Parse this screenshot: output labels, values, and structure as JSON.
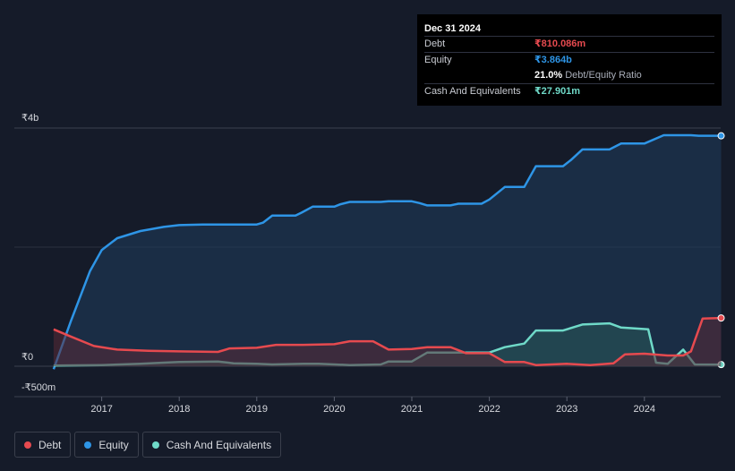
{
  "tooltip": {
    "date": "Dec 31 2024",
    "rows": [
      {
        "label": "Debt",
        "value": "₹810.086m",
        "color": "#e64a4f"
      },
      {
        "label": "Equity",
        "value": "₹3.864b",
        "color": "#2e95e6"
      },
      {
        "label": "",
        "value": "21.0%",
        "sub": "Debt/Equity Ratio",
        "color": "#ffffff"
      },
      {
        "label": "Cash And Equivalents",
        "value": "₹27.901m",
        "color": "#6fd9c8"
      }
    ]
  },
  "legend": [
    {
      "label": "Debt",
      "color": "#e64a4f"
    },
    {
      "label": "Equity",
      "color": "#2e95e6"
    },
    {
      "label": "Cash And Equivalents",
      "color": "#6fd9c8"
    }
  ],
  "chart_data": {
    "type": "area",
    "title": "",
    "xlabel": "",
    "ylabel": "",
    "y_unit": "₹ billions",
    "ylim": [
      -0.5,
      4.0
    ],
    "y_tick_labels": [
      {
        "value": 4.0,
        "label": "₹4b"
      },
      {
        "value": 0.0,
        "label": "₹0"
      },
      {
        "value": -0.5,
        "label": "-₹500m"
      }
    ],
    "x_ticks": [
      2017,
      2018,
      2019,
      2020,
      2021,
      2022,
      2023,
      2024
    ],
    "xlim": [
      2016.0,
      2025.0
    ],
    "series": [
      {
        "name": "Equity",
        "color": "#2e95e6",
        "fill": "#1f3d5c",
        "points": [
          [
            2016.38,
            -0.05
          ],
          [
            2016.6,
            0.75
          ],
          [
            2016.85,
            1.6
          ],
          [
            2017.0,
            1.95
          ],
          [
            2017.2,
            2.15
          ],
          [
            2017.5,
            2.27
          ],
          [
            2017.8,
            2.34
          ],
          [
            2018.0,
            2.37
          ],
          [
            2018.3,
            2.38
          ],
          [
            2018.65,
            2.38
          ],
          [
            2019.0,
            2.38
          ],
          [
            2019.08,
            2.41
          ],
          [
            2019.2,
            2.53
          ],
          [
            2019.5,
            2.53
          ],
          [
            2019.58,
            2.58
          ],
          [
            2019.72,
            2.68
          ],
          [
            2020.0,
            2.68
          ],
          [
            2020.08,
            2.72
          ],
          [
            2020.2,
            2.76
          ],
          [
            2020.6,
            2.76
          ],
          [
            2020.7,
            2.77
          ],
          [
            2021.0,
            2.77
          ],
          [
            2021.1,
            2.74
          ],
          [
            2021.2,
            2.7
          ],
          [
            2021.5,
            2.7
          ],
          [
            2021.6,
            2.73
          ],
          [
            2021.9,
            2.73
          ],
          [
            2022.0,
            2.8
          ],
          [
            2022.2,
            3.01
          ],
          [
            2022.45,
            3.01
          ],
          [
            2022.6,
            3.36
          ],
          [
            2022.95,
            3.36
          ],
          [
            2023.05,
            3.46
          ],
          [
            2023.2,
            3.64
          ],
          [
            2023.55,
            3.64
          ],
          [
            2023.7,
            3.74
          ],
          [
            2024.0,
            3.74
          ],
          [
            2024.25,
            3.88
          ],
          [
            2024.6,
            3.88
          ],
          [
            2024.7,
            3.87
          ],
          [
            2024.99,
            3.87
          ]
        ]
      },
      {
        "name": "Cash And Equivalents",
        "color": "#6fd9c8",
        "fill": "#2a5a5a",
        "points": [
          [
            2016.38,
            0.01
          ],
          [
            2017.0,
            0.02
          ],
          [
            2017.5,
            0.04
          ],
          [
            2017.8,
            0.06
          ],
          [
            2018.0,
            0.07
          ],
          [
            2018.5,
            0.08
          ],
          [
            2018.7,
            0.05
          ],
          [
            2019.0,
            0.04
          ],
          [
            2019.2,
            0.03
          ],
          [
            2019.6,
            0.04
          ],
          [
            2019.8,
            0.04
          ],
          [
            2020.0,
            0.03
          ],
          [
            2020.2,
            0.02
          ],
          [
            2020.6,
            0.03
          ],
          [
            2020.7,
            0.08
          ],
          [
            2021.0,
            0.08
          ],
          [
            2021.2,
            0.23
          ],
          [
            2021.6,
            0.23
          ],
          [
            2022.0,
            0.23
          ],
          [
            2022.2,
            0.32
          ],
          [
            2022.45,
            0.38
          ],
          [
            2022.6,
            0.6
          ],
          [
            2022.95,
            0.6
          ],
          [
            2023.2,
            0.7
          ],
          [
            2023.55,
            0.72
          ],
          [
            2023.7,
            0.65
          ],
          [
            2024.05,
            0.62
          ],
          [
            2024.15,
            0.06
          ],
          [
            2024.3,
            0.04
          ],
          [
            2024.5,
            0.28
          ],
          [
            2024.65,
            0.03
          ],
          [
            2024.99,
            0.028
          ]
        ]
      },
      {
        "name": "Debt",
        "color": "#e64a4f",
        "fill": "#5a2a36",
        "points": [
          [
            2016.38,
            0.62
          ],
          [
            2016.6,
            0.5
          ],
          [
            2016.9,
            0.34
          ],
          [
            2017.2,
            0.28
          ],
          [
            2017.6,
            0.26
          ],
          [
            2018.0,
            0.25
          ],
          [
            2018.5,
            0.24
          ],
          [
            2018.65,
            0.3
          ],
          [
            2019.0,
            0.31
          ],
          [
            2019.25,
            0.36
          ],
          [
            2019.6,
            0.36
          ],
          [
            2020.0,
            0.37
          ],
          [
            2020.2,
            0.42
          ],
          [
            2020.5,
            0.42
          ],
          [
            2020.7,
            0.28
          ],
          [
            2021.0,
            0.29
          ],
          [
            2021.2,
            0.32
          ],
          [
            2021.5,
            0.32
          ],
          [
            2021.7,
            0.22
          ],
          [
            2022.0,
            0.22
          ],
          [
            2022.2,
            0.07
          ],
          [
            2022.45,
            0.07
          ],
          [
            2022.6,
            0.02
          ],
          [
            2023.0,
            0.04
          ],
          [
            2023.3,
            0.02
          ],
          [
            2023.6,
            0.05
          ],
          [
            2023.75,
            0.2
          ],
          [
            2024.0,
            0.21
          ],
          [
            2024.3,
            0.18
          ],
          [
            2024.5,
            0.18
          ],
          [
            2024.6,
            0.25
          ],
          [
            2024.75,
            0.8
          ],
          [
            2024.99,
            0.81
          ]
        ]
      }
    ]
  }
}
